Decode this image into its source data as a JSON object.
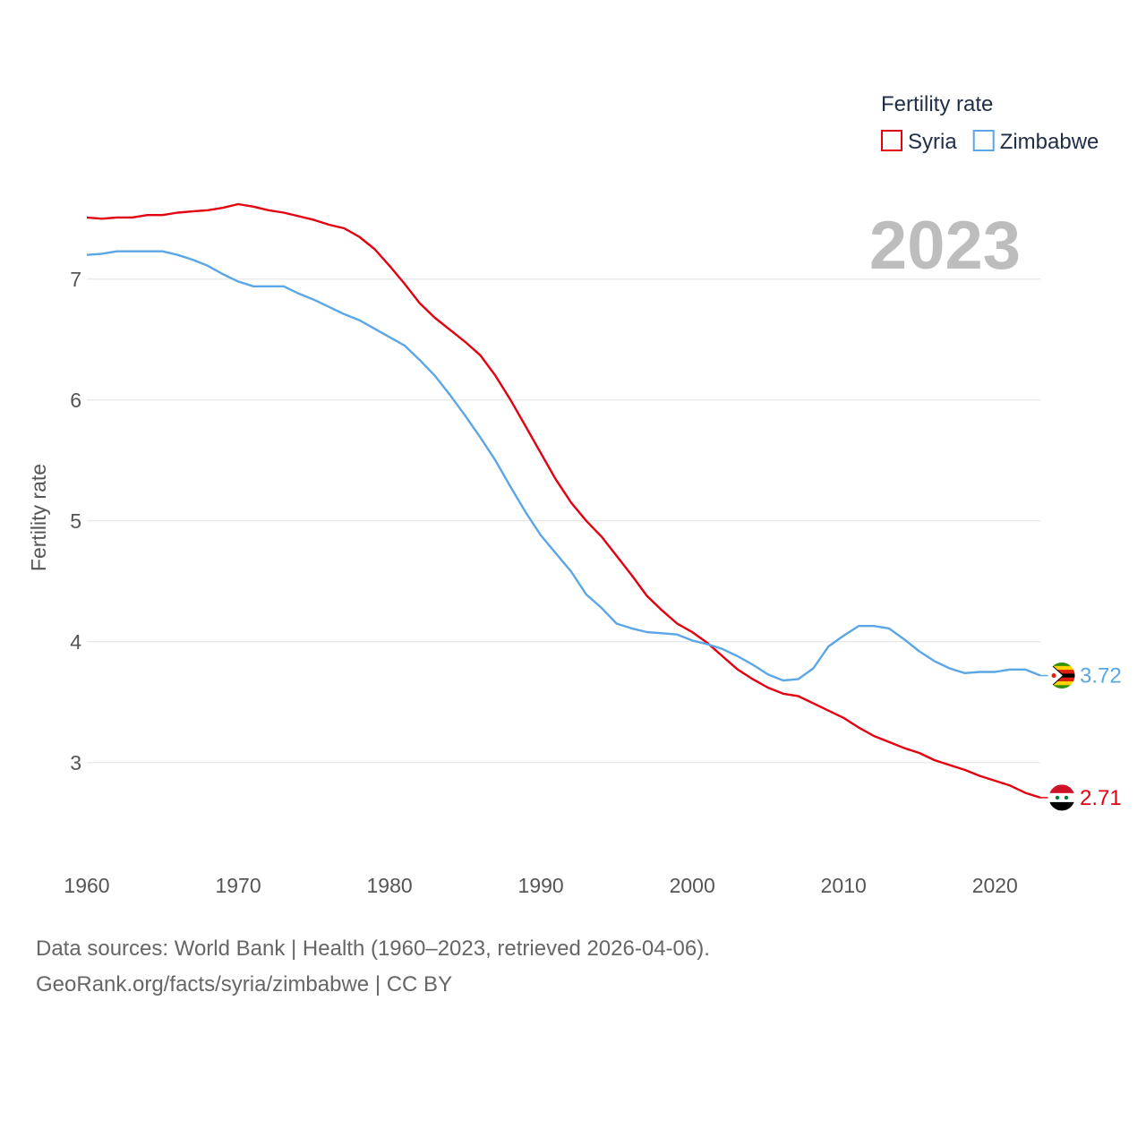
{
  "chart_data": {
    "type": "line",
    "title": "Fertility rate",
    "xlabel": "",
    "ylabel": "Fertility rate",
    "xlim": [
      1960,
      2023
    ],
    "ylim": [
      2.45,
      7.85
    ],
    "x_ticks": [
      1960,
      1970,
      1980,
      1990,
      2000,
      2010,
      2020
    ],
    "y_ticks": [
      3,
      4,
      5,
      6,
      7
    ],
    "grid": true,
    "legend_position": "top-right",
    "year_label": "2023",
    "x": [
      1960,
      1961,
      1962,
      1963,
      1964,
      1965,
      1966,
      1967,
      1968,
      1969,
      1970,
      1971,
      1972,
      1973,
      1974,
      1975,
      1976,
      1977,
      1978,
      1979,
      1980,
      1981,
      1982,
      1983,
      1984,
      1985,
      1986,
      1987,
      1988,
      1989,
      1990,
      1991,
      1992,
      1993,
      1994,
      1995,
      1996,
      1997,
      1998,
      1999,
      2000,
      2001,
      2002,
      2003,
      2004,
      2005,
      2006,
      2007,
      2008,
      2009,
      2010,
      2011,
      2012,
      2013,
      2014,
      2015,
      2016,
      2017,
      2018,
      2019,
      2020,
      2021,
      2022,
      2023
    ],
    "series": [
      {
        "name": "Syria",
        "color": "#e3000f",
        "end_label": "2.71",
        "flag": "syria-flag",
        "values": [
          7.51,
          7.5,
          7.51,
          7.51,
          7.53,
          7.53,
          7.55,
          7.56,
          7.57,
          7.59,
          7.62,
          7.6,
          7.57,
          7.55,
          7.52,
          7.49,
          7.45,
          7.42,
          7.35,
          7.25,
          7.11,
          6.96,
          6.8,
          6.68,
          6.58,
          6.48,
          6.37,
          6.2,
          6.0,
          5.78,
          5.56,
          5.34,
          5.15,
          5.0,
          4.87,
          4.71,
          4.55,
          4.38,
          4.26,
          4.15,
          4.08,
          3.99,
          3.88,
          3.77,
          3.69,
          3.62,
          3.57,
          3.55,
          3.49,
          3.43,
          3.37,
          3.29,
          3.22,
          3.17,
          3.12,
          3.08,
          3.02,
          2.98,
          2.94,
          2.89,
          2.85,
          2.81,
          2.75,
          2.71
        ]
      },
      {
        "name": "Zimbabwe",
        "color": "#5aa6e6",
        "end_label": "3.72",
        "flag": "zimbabwe-flag",
        "values": [
          7.2,
          7.21,
          7.23,
          7.23,
          7.23,
          7.23,
          7.2,
          7.16,
          7.11,
          7.04,
          6.98,
          6.94,
          6.94,
          6.94,
          6.88,
          6.83,
          6.77,
          6.71,
          6.66,
          6.59,
          6.52,
          6.45,
          6.33,
          6.2,
          6.04,
          5.87,
          5.69,
          5.5,
          5.28,
          5.07,
          4.88,
          4.73,
          4.58,
          4.39,
          4.28,
          4.15,
          4.11,
          4.08,
          4.07,
          4.06,
          4.01,
          3.98,
          3.94,
          3.88,
          3.81,
          3.73,
          3.68,
          3.69,
          3.78,
          3.96,
          4.05,
          4.13,
          4.13,
          4.11,
          4.02,
          3.92,
          3.84,
          3.78,
          3.74,
          3.75,
          3.75,
          3.77,
          3.77,
          3.72
        ]
      }
    ]
  },
  "footer": {
    "source_line": "Data sources: World Bank | Health (1960–2023, retrieved 2026-04-06).",
    "attribution_line": "GeoRank.org/facts/syria/zimbabwe | CC BY"
  }
}
